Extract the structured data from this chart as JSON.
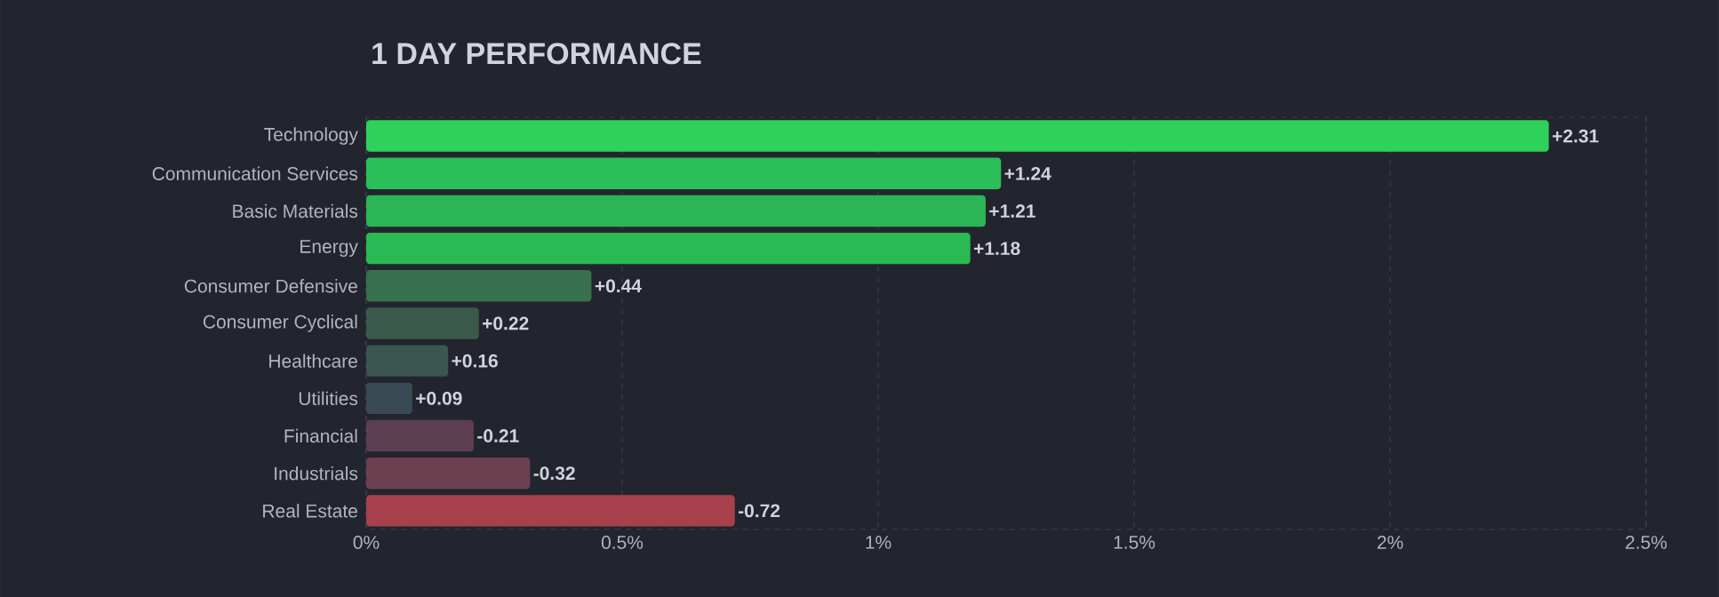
{
  "chart_data": {
    "type": "bar",
    "orientation": "horizontal",
    "title": "1 DAY PERFORMANCE",
    "categories": [
      "Technology",
      "Communication Services",
      "Basic Materials",
      "Energy",
      "Consumer Defensive",
      "Consumer Cyclical",
      "Healthcare",
      "Utilities",
      "Financial",
      "Industrials",
      "Real Estate"
    ],
    "values": [
      2.31,
      1.24,
      1.21,
      1.18,
      0.44,
      0.22,
      0.16,
      0.09,
      -0.21,
      -0.32,
      -0.72
    ],
    "base": [
      0,
      0,
      0,
      0,
      0,
      0,
      0,
      0,
      0.21,
      0.32,
      0.72
    ],
    "colors": [
      "#2fd05c",
      "#2dbf57",
      "#2cb554",
      "#2bb953",
      "#37714d",
      "#3a5a4b",
      "#3b5550",
      "#3a4a55",
      "#5e3f51",
      "#6b404f",
      "#a8404b"
    ],
    "value_labels": [
      "+2.31",
      "+1.24",
      "+1.21",
      "+1.18",
      "+0.44",
      "+0.22",
      "+0.16",
      "+0.09",
      "-0.21",
      "-0.32",
      "-0.72"
    ],
    "xlim": [
      0,
      2.5
    ],
    "xticks": [
      {
        "value": 0,
        "label": "0%"
      },
      {
        "value": 0.5,
        "label": "0.5%"
      },
      {
        "value": 1,
        "label": "1%"
      },
      {
        "value": 1.5,
        "label": "1.5%"
      },
      {
        "value": 2,
        "label": "2%"
      },
      {
        "value": 2.5,
        "label": "2.5%"
      }
    ],
    "grid": "x"
  }
}
